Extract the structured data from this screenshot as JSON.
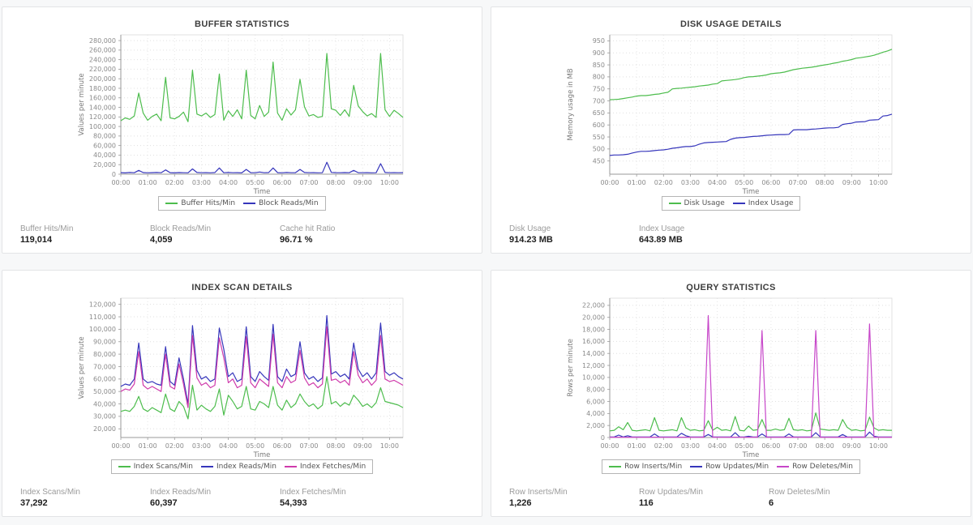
{
  "panels": [
    {
      "title": "BUFFER STATISTICS",
      "stats": [
        {
          "label": "Buffer Hits/Min",
          "value": "119,014"
        },
        {
          "label": "Block Reads/Min",
          "value": "4,059"
        },
        {
          "label": "Cache hit Ratio",
          "value": "96.71 %"
        }
      ]
    },
    {
      "title": "DISK USAGE DETAILS",
      "stats": [
        {
          "label": "Disk Usage",
          "value": "914.23 MB"
        },
        {
          "label": "Index Usage",
          "value": "643.89 MB"
        }
      ]
    },
    {
      "title": "INDEX SCAN DETAILS",
      "stats": [
        {
          "label": "Index Scans/Min",
          "value": "37,292"
        },
        {
          "label": "Index Reads/Min",
          "value": "60,397"
        },
        {
          "label": "Index Fetches/Min",
          "value": "54,393"
        }
      ]
    },
    {
      "title": "QUERY STATISTICS",
      "stats": [
        {
          "label": "Row Inserts/Min",
          "value": "1,226"
        },
        {
          "label": "Row Updates/Min",
          "value": "116"
        },
        {
          "label": "Row Deletes/Min",
          "value": "6"
        }
      ]
    }
  ],
  "colors": {
    "green": "#4dbd4d",
    "blue": "#3636bb",
    "magenta": "#cf3aab",
    "violet": "#c746c9"
  },
  "chart_data": [
    {
      "type": "line",
      "title": "BUFFER STATISTICS",
      "xlabel": "Time",
      "ylabel": "Values per minute",
      "x_ticks": [
        "00:00",
        "01:00",
        "02:00",
        "03:00",
        "04:00",
        "05:00",
        "06:00",
        "07:00",
        "08:00",
        "09:00",
        "10:00"
      ],
      "x_max_min": 630,
      "x_step_min": 10,
      "ylim": [
        0,
        292000
      ],
      "ytick_start": 0,
      "ytick_end": 280000,
      "ytick_step": 20000,
      "grid": true,
      "legend_position": "bottom",
      "series": [
        {
          "name": "Buffer Hits/Min",
          "color": "#4dbd4d",
          "values": [
            112000,
            118000,
            115000,
            122000,
            170000,
            128000,
            113000,
            121000,
            126000,
            112000,
            203000,
            118000,
            116000,
            121000,
            130000,
            110000,
            218000,
            126000,
            122000,
            128000,
            119000,
            125000,
            210000,
            113000,
            133000,
            121000,
            135000,
            116000,
            218000,
            123000,
            116000,
            144000,
            121000,
            130000,
            235000,
            128000,
            113000,
            137000,
            124000,
            135000,
            199000,
            141000,
            122000,
            125000,
            119000,
            121000,
            253000,
            137000,
            134000,
            123000,
            135000,
            121000,
            186000,
            143000,
            131000,
            122000,
            127000,
            119000,
            253000,
            135000,
            121000,
            134000,
            127000,
            119000
          ]
        },
        {
          "name": "Block Reads/Min",
          "color": "#3636bb",
          "values": [
            3200,
            2800,
            3500,
            3000,
            8000,
            3400,
            2900,
            3300,
            3600,
            3000,
            9000,
            3200,
            2800,
            3400,
            3100,
            2900,
            11000,
            3500,
            3000,
            3200,
            2900,
            3400,
            13000,
            3100,
            3600,
            3000,
            3300,
            2800,
            10000,
            3200,
            3000,
            4500,
            3100,
            3400,
            13000,
            3200,
            2900,
            3500,
            3100,
            3300,
            10000,
            3600,
            3000,
            3200,
            2900,
            3100,
            25000,
            3800,
            3200,
            3000,
            3400,
            3100,
            8000,
            3300,
            3000,
            3200,
            2900,
            3100,
            22000,
            3500,
            3100,
            3300,
            3000,
            3200
          ]
        }
      ]
    },
    {
      "type": "line",
      "title": "DISK USAGE DETAILS",
      "xlabel": "Time",
      "ylabel": "Memory usage in MB",
      "x_ticks": [
        "00:00",
        "01:00",
        "02:00",
        "03:00",
        "04:00",
        "05:00",
        "06:00",
        "07:00",
        "08:00",
        "09:00",
        "10:00"
      ],
      "x_max_min": 630,
      "x_step_min": 10,
      "ylim": [
        395,
        975
      ],
      "ytick_start": 450,
      "ytick_end": 950,
      "ytick_step": 50,
      "grid": true,
      "legend_position": "bottom",
      "series": [
        {
          "name": "Disk Usage",
          "color": "#4dbd4d",
          "values": [
            705,
            706,
            707,
            710,
            713,
            716,
            720,
            722,
            722,
            724,
            727,
            729,
            733,
            736,
            750,
            752,
            753,
            755,
            757,
            759,
            762,
            764,
            766,
            770,
            772,
            783,
            785,
            787,
            789,
            792,
            797,
            800,
            801,
            803,
            805,
            808,
            813,
            815,
            817,
            820,
            825,
            830,
            833,
            836,
            838,
            840,
            843,
            847,
            850,
            853,
            857,
            860,
            865,
            868,
            872,
            878,
            880,
            883,
            886,
            890,
            896,
            903,
            908,
            915
          ]
        },
        {
          "name": "Index Usage",
          "color": "#3636bb",
          "values": [
            473,
            475,
            475,
            476,
            478,
            483,
            487,
            490,
            490,
            491,
            493,
            495,
            496,
            499,
            503,
            505,
            508,
            510,
            510,
            513,
            520,
            525,
            527,
            528,
            529,
            530,
            531,
            540,
            545,
            547,
            548,
            550,
            552,
            553,
            555,
            557,
            558,
            559,
            560,
            560,
            561,
            579,
            580,
            580,
            580,
            582,
            583,
            585,
            587,
            588,
            588,
            590,
            602,
            605,
            607,
            612,
            613,
            614,
            620,
            621,
            622,
            637,
            639,
            645
          ]
        }
      ]
    },
    {
      "type": "line",
      "title": "INDEX SCAN DETAILS",
      "xlabel": "Time",
      "ylabel": "Values per minute",
      "x_ticks": [
        "00:00",
        "01:00",
        "02:00",
        "03:00",
        "04:00",
        "05:00",
        "06:00",
        "07:00",
        "08:00",
        "09:00",
        "10:00"
      ],
      "x_max_min": 630,
      "x_step_min": 10,
      "ylim": [
        13000,
        125000
      ],
      "ytick_start": 20000,
      "ytick_end": 120000,
      "ytick_step": 10000,
      "grid": true,
      "legend_position": "bottom",
      "series": [
        {
          "name": "Index Scans/Min",
          "color": "#4dbd4d",
          "values": [
            34000,
            35000,
            34000,
            38000,
            46000,
            36000,
            34000,
            37000,
            35000,
            33000,
            48000,
            36000,
            34000,
            42000,
            38000,
            28000,
            55000,
            35000,
            39000,
            36000,
            34000,
            38000,
            52000,
            31000,
            47000,
            42000,
            36000,
            38000,
            54000,
            36000,
            35000,
            42000,
            40000,
            37000,
            54000,
            39000,
            35000,
            43000,
            37000,
            40000,
            48000,
            42000,
            38000,
            40000,
            36000,
            39000,
            62000,
            40000,
            42000,
            38000,
            41000,
            39000,
            47000,
            43000,
            38000,
            40000,
            37000,
            41000,
            53000,
            42000,
            41000,
            40000,
            39000,
            37000
          ]
        },
        {
          "name": "Index Reads/Min",
          "color": "#3636bb",
          "values": [
            54000,
            56000,
            55000,
            60000,
            89000,
            60000,
            57000,
            58000,
            56000,
            55000,
            86000,
            58000,
            55000,
            77000,
            60000,
            40000,
            103000,
            67000,
            60000,
            62000,
            58000,
            60000,
            101000,
            84000,
            62000,
            65000,
            58000,
            60000,
            102000,
            62000,
            58000,
            66000,
            62000,
            59000,
            104000,
            62000,
            58000,
            68000,
            62000,
            64000,
            90000,
            65000,
            60000,
            62000,
            58000,
            61000,
            111000,
            64000,
            66000,
            62000,
            64000,
            60000,
            89000,
            68000,
            62000,
            65000,
            60000,
            65000,
            105000,
            66000,
            63000,
            65000,
            62000,
            60000
          ]
        },
        {
          "name": "Index Fetches/Min",
          "color": "#cf3aab",
          "values": [
            50000,
            52000,
            51000,
            56000,
            82000,
            55000,
            52000,
            54000,
            52000,
            50000,
            80000,
            54000,
            52000,
            72000,
            56000,
            37000,
            95000,
            61000,
            55000,
            57000,
            53000,
            55000,
            93000,
            77000,
            57000,
            60000,
            53000,
            55000,
            94000,
            57000,
            53000,
            60000,
            57000,
            54000,
            96000,
            57000,
            53000,
            62000,
            57000,
            59000,
            83000,
            61000,
            55000,
            57000,
            53000,
            56000,
            102000,
            59000,
            60000,
            57000,
            59000,
            55000,
            82000,
            63000,
            57000,
            60000,
            55000,
            59000,
            95000,
            60000,
            58000,
            59000,
            57000,
            55000
          ]
        }
      ]
    },
    {
      "type": "line",
      "title": "QUERY STATISTICS",
      "xlabel": "Time",
      "ylabel": "Rows per minute",
      "x_ticks": [
        "00:00",
        "01:00",
        "02:00",
        "03:00",
        "04:00",
        "05:00",
        "06:00",
        "07:00",
        "08:00",
        "09:00",
        "10:00"
      ],
      "x_max_min": 630,
      "x_step_min": 10,
      "ylim": [
        0,
        23200
      ],
      "ytick_start": 0,
      "ytick_end": 22000,
      "ytick_step": 2000,
      "grid": true,
      "legend_position": "bottom",
      "series": [
        {
          "name": "Row Inserts/Min",
          "color": "#4dbd4d",
          "values": [
            1100,
            1200,
            1800,
            1300,
            2500,
            1200,
            1100,
            1200,
            1300,
            1100,
            3300,
            1200,
            1100,
            1200,
            1300,
            1100,
            3300,
            1600,
            1200,
            1300,
            1100,
            1200,
            2800,
            1200,
            1700,
            1200,
            1300,
            1100,
            3500,
            1200,
            1100,
            1900,
            1200,
            1300,
            3000,
            1200,
            1200,
            1400,
            1200,
            1300,
            3200,
            1300,
            1200,
            1300,
            1100,
            1200,
            4100,
            1400,
            1300,
            1200,
            1300,
            1200,
            3000,
            1700,
            1200,
            1300,
            1100,
            1200,
            3400,
            1600,
            1200,
            1300,
            1200,
            1200
          ]
        },
        {
          "name": "Row Updates/Min",
          "color": "#3636bb",
          "values": [
            100,
            100,
            400,
            100,
            300,
            100,
            100,
            100,
            100,
            100,
            600,
            100,
            100,
            100,
            100,
            100,
            700,
            300,
            100,
            100,
            100,
            100,
            500,
            100,
            100,
            100,
            100,
            100,
            800,
            100,
            100,
            200,
            100,
            100,
            600,
            100,
            100,
            100,
            100,
            100,
            600,
            100,
            100,
            100,
            100,
            100,
            800,
            100,
            100,
            100,
            100,
            100,
            500,
            100,
            100,
            100,
            100,
            100,
            900,
            200,
            100,
            100,
            100,
            100
          ]
        },
        {
          "name": "Row Deletes/Min",
          "color": "#c746c9",
          "values": [
            50,
            50,
            50,
            50,
            50,
            50,
            50,
            50,
            50,
            50,
            50,
            50,
            50,
            50,
            50,
            50,
            50,
            50,
            50,
            50,
            50,
            50,
            20300,
            50,
            50,
            50,
            50,
            50,
            50,
            50,
            50,
            50,
            50,
            50,
            17800,
            50,
            50,
            50,
            50,
            50,
            50,
            50,
            50,
            50,
            50,
            50,
            17800,
            50,
            50,
            50,
            50,
            50,
            50,
            50,
            50,
            50,
            50,
            50,
            18900,
            50,
            50,
            50,
            50,
            50
          ]
        }
      ]
    }
  ]
}
